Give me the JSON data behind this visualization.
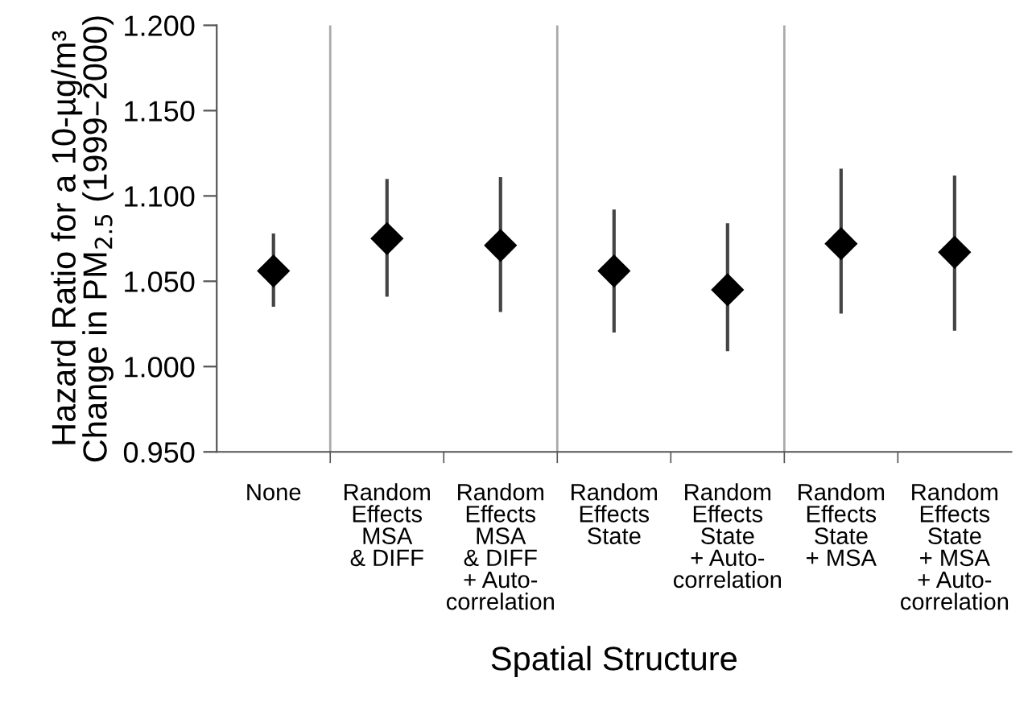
{
  "chart_data": {
    "type": "scatter",
    "xlabel": "Spatial Structure",
    "ylabel": "Hazard Ratio for a 10-µg/m³\nChange in PM$_{2.5}$ (1999–2000)",
    "categories": [
      "None",
      "Random\nEffects\nMSA\n& DIFF",
      "Random\nEffects\nMSA\n& DIFF\n+ Auto-\ncorrelation",
      "Random\nEffects\nState",
      "Random\nEffects\nState\n+ Auto-\ncorrelation",
      "Random\nEffects\nState\n+ MSA",
      "Random\nEffects\nState\n+ MSA\n+ Auto-\ncorrelation"
    ],
    "values": [
      1.056,
      1.075,
      1.071,
      1.056,
      1.045,
      1.072,
      1.067
    ],
    "errors": [
      [
        1.035,
        1.078
      ],
      [
        1.041,
        1.11
      ],
      [
        1.032,
        1.111
      ],
      [
        1.02,
        1.092
      ],
      [
        1.009,
        1.084
      ],
      [
        1.031,
        1.116
      ],
      [
        1.021,
        1.112
      ]
    ],
    "color": "#000000",
    "marker": "diamond",
    "ylim": [
      0.95,
      1.2
    ],
    "yticks": [
      {
        "value": 0.95,
        "label": "0.950"
      },
      {
        "value": 1.0,
        "label": "1.000"
      },
      {
        "value": 1.05,
        "label": "1.050"
      },
      {
        "value": 1.1,
        "label": "1.100"
      },
      {
        "value": 1.15,
        "label": "1.150"
      },
      {
        "value": 1.2,
        "label": "1.200"
      }
    ],
    "grid": false
  }
}
